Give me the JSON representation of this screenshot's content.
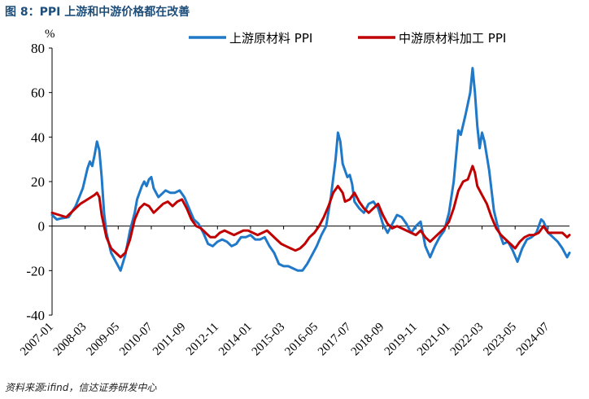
{
  "figure": {
    "title": "图 8：PPI 上游和中游价格都在改善",
    "source": "资料来源:ifind，信达证券研发中心",
    "unit": "%"
  },
  "chart_data": {
    "type": "line",
    "title": "图 8：PPI 上游和中游价格都在改善",
    "xlabel": "",
    "ylabel": "%",
    "ylim": [
      -40,
      80
    ],
    "yticks": [
      -40,
      -20,
      0,
      20,
      40,
      60,
      80
    ],
    "xlim": [
      "2007-01",
      "2025-04"
    ],
    "xticks": [
      "2007-01",
      "2008-03",
      "2009-05",
      "2010-07",
      "2011-09",
      "2012-11",
      "2014-01",
      "2015-03",
      "2016-05",
      "2017-07",
      "2018-09",
      "2019-11",
      "2021-01",
      "2022-03",
      "2023-05",
      "2024-07"
    ],
    "grid": false,
    "legend_position": "top",
    "series": [
      {
        "name": "上游原材料 PPI",
        "color": "#1f78c8",
        "points": [
          [
            "2007-01",
            5
          ],
          [
            "2007-03",
            3
          ],
          [
            "2007-05",
            3.5
          ],
          [
            "2007-08",
            4
          ],
          [
            "2007-11",
            9
          ],
          [
            "2008-02",
            17
          ],
          [
            "2008-04",
            26
          ],
          [
            "2008-05",
            29
          ],
          [
            "2008-06",
            27
          ],
          [
            "2008-07",
            32
          ],
          [
            "2008-08",
            38
          ],
          [
            "2008-09",
            34
          ],
          [
            "2008-10",
            22
          ],
          [
            "2008-11",
            6
          ],
          [
            "2008-12",
            -3
          ],
          [
            "2009-02",
            -12
          ],
          [
            "2009-04",
            -16
          ],
          [
            "2009-06",
            -20
          ],
          [
            "2009-08",
            -13
          ],
          [
            "2009-10",
            -2
          ],
          [
            "2009-12",
            6
          ],
          [
            "2010-01",
            12
          ],
          [
            "2010-03",
            18
          ],
          [
            "2010-04",
            20
          ],
          [
            "2010-05",
            18
          ],
          [
            "2010-06",
            21
          ],
          [
            "2010-07",
            22
          ],
          [
            "2010-08",
            17
          ],
          [
            "2010-10",
            13
          ],
          [
            "2010-12",
            15
          ],
          [
            "2011-01",
            16
          ],
          [
            "2011-03",
            15
          ],
          [
            "2011-05",
            15
          ],
          [
            "2011-07",
            16
          ],
          [
            "2011-09",
            13
          ],
          [
            "2011-11",
            8
          ],
          [
            "2012-01",
            3
          ],
          [
            "2012-03",
            1
          ],
          [
            "2012-05",
            -3
          ],
          [
            "2012-07",
            -8
          ],
          [
            "2012-09",
            -9
          ],
          [
            "2012-11",
            -7
          ],
          [
            "2013-01",
            -6
          ],
          [
            "2013-03",
            -7
          ],
          [
            "2013-05",
            -9
          ],
          [
            "2013-07",
            -8
          ],
          [
            "2013-09",
            -5
          ],
          [
            "2013-11",
            -5
          ],
          [
            "2014-01",
            -4
          ],
          [
            "2014-03",
            -6
          ],
          [
            "2014-05",
            -6
          ],
          [
            "2014-07",
            -5
          ],
          [
            "2014-09",
            -9
          ],
          [
            "2014-11",
            -12
          ],
          [
            "2015-01",
            -17
          ],
          [
            "2015-03",
            -18
          ],
          [
            "2015-05",
            -18
          ],
          [
            "2015-07",
            -19
          ],
          [
            "2015-09",
            -20
          ],
          [
            "2015-11",
            -20
          ],
          [
            "2016-01",
            -17
          ],
          [
            "2016-03",
            -13
          ],
          [
            "2016-05",
            -9
          ],
          [
            "2016-07",
            -4
          ],
          [
            "2016-09",
            0
          ],
          [
            "2016-11",
            13
          ],
          [
            "2017-01",
            30
          ],
          [
            "2017-02",
            42
          ],
          [
            "2017-03",
            38
          ],
          [
            "2017-04",
            28
          ],
          [
            "2017-06",
            22
          ],
          [
            "2017-07",
            23
          ],
          [
            "2017-08",
            19
          ],
          [
            "2017-09",
            11
          ],
          [
            "2017-11",
            8
          ],
          [
            "2018-01",
            6
          ],
          [
            "2018-03",
            10
          ],
          [
            "2018-05",
            11
          ],
          [
            "2018-07",
            8
          ],
          [
            "2018-09",
            1
          ],
          [
            "2018-11",
            -3
          ],
          [
            "2019-01",
            1
          ],
          [
            "2019-03",
            5
          ],
          [
            "2019-05",
            4
          ],
          [
            "2019-07",
            1
          ],
          [
            "2019-09",
            -3
          ],
          [
            "2019-11",
            0
          ],
          [
            "2020-01",
            2
          ],
          [
            "2020-03",
            -9
          ],
          [
            "2020-05",
            -14
          ],
          [
            "2020-07",
            -9
          ],
          [
            "2020-09",
            -5
          ],
          [
            "2020-11",
            -2
          ],
          [
            "2021-01",
            6
          ],
          [
            "2021-03",
            20
          ],
          [
            "2021-05",
            43
          ],
          [
            "2021-06",
            41
          ],
          [
            "2021-08",
            50
          ],
          [
            "2021-10",
            60
          ],
          [
            "2021-11",
            71
          ],
          [
            "2021-12",
            60
          ],
          [
            "2022-01",
            45
          ],
          [
            "2022-02",
            35
          ],
          [
            "2022-03",
            42
          ],
          [
            "2022-04",
            38
          ],
          [
            "2022-06",
            25
          ],
          [
            "2022-08",
            7
          ],
          [
            "2022-10",
            -2
          ],
          [
            "2022-12",
            -8
          ],
          [
            "2023-02",
            -7
          ],
          [
            "2023-04",
            -11
          ],
          [
            "2023-06",
            -16
          ],
          [
            "2023-08",
            -10
          ],
          [
            "2023-10",
            -6
          ],
          [
            "2023-12",
            -5
          ],
          [
            "2024-02",
            -3
          ],
          [
            "2024-04",
            3
          ],
          [
            "2024-05",
            2
          ],
          [
            "2024-07",
            -3
          ],
          [
            "2024-09",
            -5
          ],
          [
            "2024-11",
            -7
          ],
          [
            "2025-01",
            -10
          ],
          [
            "2025-03",
            -14
          ],
          [
            "2025-04",
            -12
          ]
        ]
      },
      {
        "name": "中游原材料加工 PPI",
        "color": "#c00000",
        "points": [
          [
            "2007-01",
            6
          ],
          [
            "2007-04",
            5
          ],
          [
            "2007-07",
            4
          ],
          [
            "2007-10",
            7
          ],
          [
            "2008-01",
            10
          ],
          [
            "2008-04",
            12
          ],
          [
            "2008-07",
            14
          ],
          [
            "2008-08",
            15
          ],
          [
            "2008-09",
            13
          ],
          [
            "2008-10",
            5
          ],
          [
            "2008-12",
            -5
          ],
          [
            "2009-02",
            -10
          ],
          [
            "2009-04",
            -12
          ],
          [
            "2009-06",
            -14
          ],
          [
            "2009-08",
            -12
          ],
          [
            "2009-10",
            -6
          ],
          [
            "2009-12",
            3
          ],
          [
            "2010-02",
            8
          ],
          [
            "2010-04",
            10
          ],
          [
            "2010-06",
            9
          ],
          [
            "2010-08",
            6
          ],
          [
            "2010-10",
            8
          ],
          [
            "2010-12",
            10
          ],
          [
            "2011-02",
            11
          ],
          [
            "2011-04",
            9
          ],
          [
            "2011-06",
            11
          ],
          [
            "2011-08",
            12
          ],
          [
            "2011-10",
            8
          ],
          [
            "2011-12",
            3
          ],
          [
            "2012-02",
            0
          ],
          [
            "2012-04",
            -1
          ],
          [
            "2012-06",
            -3
          ],
          [
            "2012-08",
            -5
          ],
          [
            "2012-10",
            -5
          ],
          [
            "2012-12",
            -3
          ],
          [
            "2013-02",
            -2
          ],
          [
            "2013-04",
            -3
          ],
          [
            "2013-06",
            -4
          ],
          [
            "2013-08",
            -3
          ],
          [
            "2013-10",
            -2
          ],
          [
            "2013-12",
            -2
          ],
          [
            "2014-02",
            -3
          ],
          [
            "2014-04",
            -4
          ],
          [
            "2014-06",
            -3
          ],
          [
            "2014-08",
            -2
          ],
          [
            "2014-10",
            -4
          ],
          [
            "2014-12",
            -6
          ],
          [
            "2015-02",
            -8
          ],
          [
            "2015-04",
            -9
          ],
          [
            "2015-06",
            -10
          ],
          [
            "2015-08",
            -11
          ],
          [
            "2015-10",
            -10
          ],
          [
            "2015-12",
            -8
          ],
          [
            "2016-02",
            -5
          ],
          [
            "2016-04",
            -3
          ],
          [
            "2016-06",
            0
          ],
          [
            "2016-08",
            4
          ],
          [
            "2016-10",
            9
          ],
          [
            "2016-12",
            15
          ],
          [
            "2017-02",
            18
          ],
          [
            "2017-04",
            15
          ],
          [
            "2017-05",
            11
          ],
          [
            "2017-07",
            12
          ],
          [
            "2017-09",
            15
          ],
          [
            "2017-11",
            11
          ],
          [
            "2018-01",
            8
          ],
          [
            "2018-03",
            6
          ],
          [
            "2018-05",
            8
          ],
          [
            "2018-07",
            10
          ],
          [
            "2018-09",
            5
          ],
          [
            "2018-11",
            1
          ],
          [
            "2019-01",
            -1
          ],
          [
            "2019-03",
            0
          ],
          [
            "2019-05",
            -1
          ],
          [
            "2019-07",
            -2
          ],
          [
            "2019-09",
            -3
          ],
          [
            "2019-11",
            -4
          ],
          [
            "2020-01",
            -2
          ],
          [
            "2020-03",
            -5
          ],
          [
            "2020-05",
            -7
          ],
          [
            "2020-07",
            -5
          ],
          [
            "2020-09",
            -3
          ],
          [
            "2020-11",
            -1
          ],
          [
            "2021-01",
            2
          ],
          [
            "2021-03",
            8
          ],
          [
            "2021-05",
            16
          ],
          [
            "2021-07",
            20
          ],
          [
            "2021-09",
            21
          ],
          [
            "2021-11",
            27
          ],
          [
            "2021-12",
            24
          ],
          [
            "2022-01",
            18
          ],
          [
            "2022-03",
            14
          ],
          [
            "2022-05",
            10
          ],
          [
            "2022-07",
            4
          ],
          [
            "2022-09",
            -1
          ],
          [
            "2022-11",
            -4
          ],
          [
            "2023-01",
            -6
          ],
          [
            "2023-03",
            -8
          ],
          [
            "2023-05",
            -10
          ],
          [
            "2023-07",
            -7
          ],
          [
            "2023-09",
            -5
          ],
          [
            "2023-11",
            -4
          ],
          [
            "2024-01",
            -4
          ],
          [
            "2024-03",
            -3
          ],
          [
            "2024-05",
            0
          ],
          [
            "2024-07",
            -3
          ],
          [
            "2024-09",
            -3
          ],
          [
            "2024-11",
            -3
          ],
          [
            "2025-01",
            -3
          ],
          [
            "2025-03",
            -5
          ],
          [
            "2025-04",
            -4
          ]
        ]
      }
    ]
  }
}
